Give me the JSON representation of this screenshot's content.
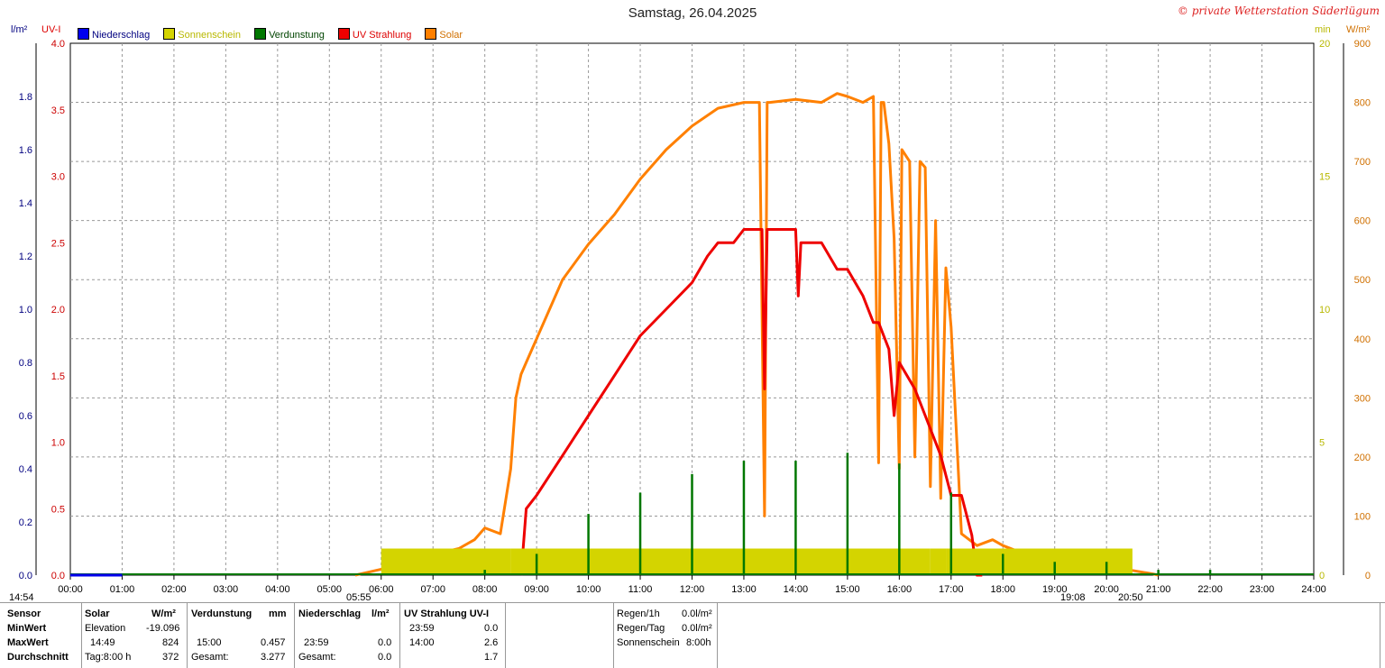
{
  "title": "Samstag, 26.04.2025",
  "copyright": "© private Wetterstation Süderlügum",
  "axis_units": {
    "left1": "l/m²",
    "left2": "UV-I",
    "right1": "min",
    "right2": "W/m²"
  },
  "legend": [
    {
      "label": "Niederschlag",
      "color": "#0000ee"
    },
    {
      "label": "Sonnenschein",
      "color": "#d4d400"
    },
    {
      "label": "Verdunstung",
      "color": "#007700"
    },
    {
      "label": "UV Strahlung",
      "color": "#ee0000"
    },
    {
      "label": "Solar",
      "color": "#ff8000"
    }
  ],
  "sun_markers": {
    "left": "14:54",
    "sunrise": "05:55",
    "sunset_mark": "19:08",
    "sunset": "20:50"
  },
  "chart_data": {
    "type": "line",
    "x_ticks": [
      "00:00",
      "01:00",
      "02:00",
      "03:00",
      "04:00",
      "05:00",
      "06:00",
      "07:00",
      "08:00",
      "09:00",
      "10:00",
      "11:00",
      "12:00",
      "13:00",
      "14:00",
      "15:00",
      "16:00",
      "17:00",
      "18:00",
      "19:00",
      "20:00",
      "21:00",
      "22:00",
      "23:00",
      "24:00"
    ],
    "axes": {
      "niederschlag": {
        "label": "l/m²",
        "ticks": [
          "0.0",
          "0.2",
          "0.4",
          "0.6",
          "0.8",
          "1.0",
          "1.2",
          "1.4",
          "1.6",
          "1.8"
        ],
        "range": [
          0,
          2.0
        ]
      },
      "uv": {
        "label": "UV-I",
        "ticks": [
          "0.0",
          "0.5",
          "1.0",
          "1.5",
          "2.0",
          "2.5",
          "3.0",
          "3.5",
          "4.0"
        ],
        "range": [
          0,
          4.0
        ]
      },
      "sonnenschein": {
        "label": "min",
        "ticks": [
          "0",
          "5",
          "10",
          "15",
          "20"
        ],
        "range": [
          0,
          20
        ]
      },
      "solar": {
        "label": "W/m²",
        "ticks": [
          "0",
          "100",
          "200",
          "300",
          "400",
          "500",
          "600",
          "700",
          "800",
          "900"
        ],
        "range": [
          0,
          900
        ]
      }
    },
    "series": [
      {
        "name": "Solar",
        "color": "#ff8000",
        "axis": "solar",
        "x": [
          5.5,
          6.0,
          6.5,
          7.0,
          7.5,
          7.8,
          8.0,
          8.3,
          8.5,
          8.6,
          8.7,
          8.8,
          9.0,
          9.3,
          9.5,
          10.0,
          10.5,
          11.0,
          11.5,
          12.0,
          12.5,
          13.0,
          13.3,
          13.4,
          13.45,
          13.5,
          14.0,
          14.5,
          14.8,
          15.0,
          15.3,
          15.5,
          15.6,
          15.65,
          15.7,
          15.8,
          15.9,
          16.0,
          16.05,
          16.2,
          16.3,
          16.4,
          16.5,
          16.6,
          16.7,
          16.8,
          16.9,
          17.0,
          17.2,
          17.5,
          17.8,
          18.0,
          18.3,
          18.5,
          19.0,
          19.5,
          20.0,
          20.5,
          20.9,
          21.0
        ],
        "y": [
          0,
          10,
          25,
          35,
          45,
          60,
          80,
          70,
          180,
          300,
          340,
          360,
          400,
          460,
          500,
          560,
          610,
          670,
          720,
          760,
          790,
          800,
          800,
          100,
          800,
          800,
          805,
          800,
          815,
          810,
          800,
          810,
          190,
          800,
          800,
          730,
          570,
          180,
          720,
          700,
          200,
          700,
          690,
          150,
          600,
          130,
          520,
          420,
          70,
          50,
          60,
          50,
          40,
          40,
          30,
          22,
          15,
          8,
          2,
          0
        ]
      },
      {
        "name": "UV Strahlung",
        "color": "#ee0000",
        "axis": "uv",
        "x": [
          8.7,
          8.8,
          9.0,
          9.5,
          10.0,
          10.5,
          11.0,
          11.5,
          12.0,
          12.3,
          12.5,
          12.8,
          13.0,
          13.35,
          13.4,
          13.45,
          13.5,
          14.0,
          14.05,
          14.1,
          14.5,
          14.8,
          15.0,
          15.3,
          15.5,
          15.6,
          15.8,
          15.9,
          16.0,
          16.3,
          16.5,
          16.8,
          17.0,
          17.2,
          17.4,
          17.5,
          17.6
        ],
        "y": [
          0,
          0.5,
          0.6,
          0.9,
          1.2,
          1.5,
          1.8,
          2.0,
          2.2,
          2.4,
          2.5,
          2.5,
          2.6,
          2.6,
          1.4,
          2.6,
          2.6,
          2.6,
          2.1,
          2.5,
          2.5,
          2.3,
          2.3,
          2.1,
          1.9,
          1.9,
          1.7,
          1.2,
          1.6,
          1.4,
          1.2,
          0.9,
          0.6,
          0.6,
          0.3,
          0.0,
          0.0
        ]
      },
      {
        "name": "Sonnenschein",
        "color": "#d4d400",
        "axis": "sonnenschein",
        "x": [
          1.0,
          2.0,
          6.0,
          8.5,
          9.0,
          10.0,
          11.0,
          12.0,
          13.0,
          14.0,
          15.0,
          16.0,
          16.6,
          16.9,
          20.5
        ],
        "y": [
          0.05,
          0.05,
          1,
          1,
          1,
          1,
          1,
          1,
          1,
          1,
          1,
          1,
          1,
          1,
          1
        ]
      },
      {
        "name": "Verdunstung",
        "color": "#007700",
        "axis": "niederschlag",
        "x": [
          8.0,
          9.0,
          10.0,
          11.0,
          12.0,
          13.0,
          14.0,
          15.0,
          16.0,
          17.0,
          18.0,
          19.0,
          20.0,
          21.0,
          22.0
        ],
        "y": [
          0.02,
          0.08,
          0.23,
          0.31,
          0.38,
          0.43,
          0.43,
          0.46,
          0.42,
          0.31,
          0.08,
          0.05,
          0.05,
          0.02,
          0.02
        ]
      },
      {
        "name": "Niederschlag",
        "color": "#0000ee",
        "axis": "niederschlag",
        "x": [
          0,
          1
        ],
        "y": [
          0,
          0
        ]
      }
    ]
  },
  "stats": {
    "col_sensor": {
      "h": "Sensor",
      "min": "MinWert",
      "max": "MaxWert",
      "avg": "Durchschnitt"
    },
    "col_solar": {
      "h": "Solar",
      "unit": "W/m²",
      "min_t": "Elevation",
      "min_v": "-19.096",
      "max_t": "14:49",
      "max_v": "824",
      "avg_t": "Tag:8:00 h",
      "avg_v": "372"
    },
    "col_verd": {
      "h": "Verdunstung",
      "unit": "mm",
      "max_t": "15:00",
      "max_v": "0.457",
      "avg_t": "Gesamt:",
      "avg_v": "3.277"
    },
    "col_nied": {
      "h": "Niederschlag",
      "unit": "l/m²",
      "max_t": "23:59",
      "max_v": "0.0",
      "avg_t": "Gesamt:",
      "avg_v": "0.0"
    },
    "col_uv": {
      "h": "UV Strahlung UV-I",
      "min_t": "23:59",
      "min_v": "0.0",
      "max_t": "14:00",
      "max_v": "2.6",
      "avg_v": "1.7"
    },
    "col_regen": {
      "r1": "Regen/1h",
      "r1v": "0.0l/m²",
      "r2": "Regen/Tag",
      "r2v": "0.0l/m²",
      "r3": "Sonnenschein",
      "r3v": "8:00h"
    }
  }
}
